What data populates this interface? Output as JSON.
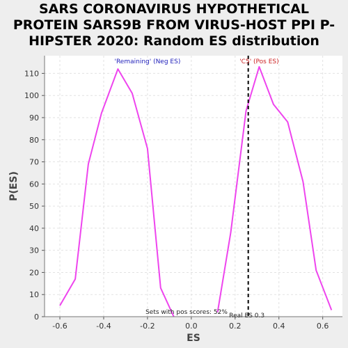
{
  "title_lines": [
    "SARS CORONAVIRUS HYPOTHETICAL",
    "PROTEIN SARS9B FROM VIRUS-HOST PPI P-",
    "HIPSTER 2020: Random ES distribution"
  ],
  "colors": {
    "curve": "#ee44ee",
    "neg_label": "#2222bb",
    "pos_label": "#cc2222",
    "real_es_line": "#000000",
    "plot_bg": "#ffffff"
  },
  "chart_data": {
    "type": "line",
    "xlabel": "ES",
    "ylabel": "P(ES)",
    "xlim": [
      -0.67,
      0.69
    ],
    "ylim": [
      0,
      118
    ],
    "x_ticks": [
      -0.6,
      -0.4,
      -0.2,
      0.0,
      0.2,
      0.4,
      0.6
    ],
    "x_tick_labels": [
      "-0.6",
      "-0.4",
      "-0.2",
      "0.0",
      "0.2",
      "0.4",
      "0.6"
    ],
    "y_ticks": [
      0,
      10,
      20,
      30,
      40,
      50,
      60,
      70,
      80,
      90,
      100,
      110
    ],
    "y_tick_labels": [
      "0",
      "10",
      "20",
      "30",
      "40",
      "50",
      "60",
      "70",
      "80",
      "90",
      "100",
      "110"
    ],
    "grid": true,
    "series": [
      {
        "x": [
          -0.6,
          -0.53,
          -0.47,
          -0.41,
          -0.335,
          -0.27,
          -0.2,
          -0.14,
          -0.08
        ],
        "y": [
          5,
          17,
          69,
          92,
          112,
          101,
          76,
          13,
          0
        ]
      },
      {
        "x": [
          0.12,
          0.18,
          0.25,
          0.31,
          0.375,
          0.44,
          0.51,
          0.57,
          0.64
        ],
        "y": [
          2,
          38,
          93,
          113,
          96,
          88,
          61,
          21,
          3
        ]
      }
    ],
    "neg_label": "'Remaining' (Neg ES)",
    "neg_label_x": -0.2,
    "pos_label": "'C5' (Pos ES)",
    "pos_label_x": 0.31,
    "real_es": 0.26,
    "real_es_label": "Real ES 0.3",
    "sets_note": "Sets with pos scores: 52%"
  }
}
